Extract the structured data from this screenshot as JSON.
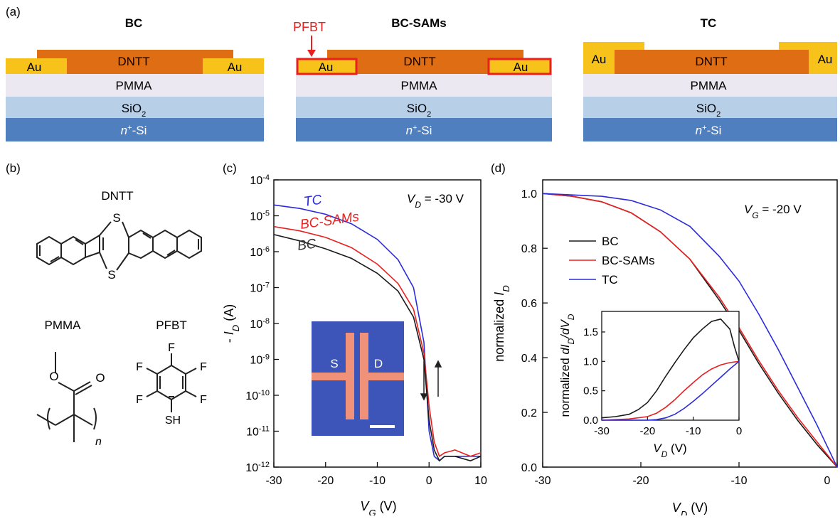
{
  "panels": {
    "a": {
      "label": "(a)",
      "devices": [
        {
          "title": "BC"
        },
        {
          "title": "BC-SAMs",
          "annotation": "PFBT"
        },
        {
          "title": "TC"
        }
      ],
      "layers": {
        "semiconductor": "DNTT",
        "electrode": "Au",
        "dielectric": "PMMA",
        "oxide_base": "SiO",
        "oxide_sub": "2",
        "substrate_italic": "n",
        "substrate_sup": "+",
        "substrate_rest": "-Si"
      }
    },
    "b": {
      "label": "(b)",
      "molecules": [
        "DNTT",
        "PMMA",
        "PFBT"
      ],
      "atoms": {
        "sulfur": "S",
        "oxygen": "O",
        "fluorine": "F",
        "thiol": "SH",
        "repeat": "n"
      }
    },
    "c": {
      "label": "(c)",
      "annotation_italic": "V",
      "annotation_sub": "D",
      "annotation_rest": " = -30 V",
      "curve_labels": [
        "TC",
        "BC-SAMs",
        "BC"
      ],
      "ylabel_prefix": "- ",
      "ylabel_italic": "I",
      "ylabel_sub": "D",
      "ylabel_rest": " (A)",
      "xlabel_italic": "V",
      "xlabel_sub": "G",
      "xlabel_rest": " (V)",
      "xticks": [
        "-30",
        "-20",
        "-10",
        "0",
        "10"
      ],
      "ytick_base": "10",
      "ytick_exponents": [
        "-4",
        "-5",
        "-6",
        "-7",
        "-8",
        "-9",
        "-10",
        "-11",
        "-12"
      ],
      "inset": {
        "source": "S",
        "drain": "D"
      }
    },
    "d": {
      "label": "(d)",
      "annotation_italic": "V",
      "annotation_sub": "G",
      "annotation_rest": " = -20 V",
      "legend": [
        "BC",
        "BC-SAMs",
        "TC"
      ],
      "ylabel_prefix": "normalized ",
      "ylabel_italic": "I",
      "ylabel_sub": "D",
      "xlabel_italic": "V",
      "xlabel_sub": "D",
      "xlabel_rest": " (V)",
      "xticks": [
        "-30",
        "-20",
        "-10",
        "0"
      ],
      "yticks": [
        "0.0",
        "0.2",
        "0.4",
        "0.6",
        "0.8",
        "1.0"
      ],
      "inset": {
        "ylabel_prefix": "normalized ",
        "ylabel_i": "dI",
        "ylabel_i_sub": "D",
        "ylabel_slash": "/dV",
        "ylabel_v_sub": "D",
        "xlabel_italic": "V",
        "xlabel_sub": "D",
        "xlabel_rest": " (V)",
        "xticks": [
          "-30",
          "-20",
          "-10",
          "0"
        ],
        "yticks": [
          "0.0",
          "0.5",
          "1.0",
          "1.5"
        ]
      }
    }
  },
  "colors": {
    "BC": "#1a1a1a",
    "BC-SAMs": "#e8201f",
    "TC": "#2b2bd9",
    "Au": "#f7c21a",
    "DNTT": "#df6d14",
    "PMMA": "#ece8f1",
    "SiO2": "#b8cfe8",
    "Si": "#4f7fbf",
    "PFBT": "#e8201f",
    "inset_bg": "#3d55b8",
    "inset_electrode": "#f0917a"
  },
  "chart_data": [
    {
      "type": "line",
      "panel": "c",
      "title": "",
      "xlabel": "V_G (V)",
      "ylabel": "- I_D (A)",
      "xlim": [
        -30,
        10
      ],
      "ylim": [
        1e-12,
        0.0001
      ],
      "yscale": "log",
      "grid": false,
      "series": [
        {
          "name": "TC",
          "color": "#2b2bd9",
          "x": [
            -30,
            -25,
            -20,
            -15,
            -10,
            -6,
            -3,
            -1,
            0,
            1,
            2,
            3,
            5,
            8,
            10
          ],
          "y": [
            2e-05,
            1.6e-05,
            1.1e-05,
            6e-06,
            2.2e-06,
            6e-07,
            1e-07,
            3e-09,
            1e-11,
            2e-12,
            1.5e-12,
            2e-12,
            2e-12,
            2e-12,
            2e-12
          ]
        },
        {
          "name": "BC-SAMs",
          "color": "#e8201f",
          "x": [
            -30,
            -25,
            -20,
            -15,
            -10,
            -6,
            -3,
            -1,
            0,
            1,
            2,
            3,
            5,
            8,
            10
          ],
          "y": [
            5e-06,
            3.8e-06,
            2.5e-06,
            1.3e-06,
            4.5e-07,
            1.3e-07,
            2.5e-08,
            1.5e-09,
            5e-11,
            5e-12,
            2e-12,
            2.5e-12,
            3e-12,
            2e-12,
            2.5e-12
          ]
        },
        {
          "name": "BC",
          "color": "#1a1a1a",
          "x": [
            -30,
            -25,
            -20,
            -15,
            -10,
            -6,
            -3,
            -1,
            0,
            1,
            2,
            3,
            5,
            8,
            10
          ],
          "y": [
            3e-06,
            2e-06,
            1.2e-06,
            6.5e-07,
            2.5e-07,
            8e-08,
            1.5e-08,
            1e-09,
            2e-11,
            3e-12,
            1.5e-12,
            2e-12,
            2e-12,
            1.5e-12,
            2e-12
          ]
        }
      ]
    },
    {
      "type": "line",
      "panel": "d",
      "title": "",
      "xlabel": "V_D (V)",
      "ylabel": "normalized I_D",
      "xlim": [
        -30,
        0
      ],
      "ylim": [
        0,
        1.05
      ],
      "grid": false,
      "legend_position": "upper-left",
      "series": [
        {
          "name": "BC",
          "color": "#1a1a1a",
          "x": [
            -30,
            -27,
            -24,
            -21,
            -18,
            -15,
            -12,
            -10,
            -8,
            -6,
            -4,
            -2,
            0
          ],
          "y": [
            1.0,
            0.99,
            0.97,
            0.93,
            0.86,
            0.76,
            0.61,
            0.5,
            0.38,
            0.27,
            0.17,
            0.08,
            0.0
          ]
        },
        {
          "name": "BC-SAMs",
          "color": "#e8201f",
          "x": [
            -30,
            -27,
            -24,
            -21,
            -18,
            -15,
            -12,
            -10,
            -8,
            -6,
            -4,
            -2,
            0
          ],
          "y": [
            1.0,
            0.99,
            0.97,
            0.93,
            0.86,
            0.76,
            0.62,
            0.51,
            0.39,
            0.28,
            0.18,
            0.09,
            0.0
          ]
        },
        {
          "name": "TC",
          "color": "#2b2bd9",
          "x": [
            -30,
            -27,
            -24,
            -21,
            -18,
            -15,
            -12,
            -10,
            -8,
            -6,
            -4,
            -2,
            0
          ],
          "y": [
            1.0,
            0.995,
            0.99,
            0.975,
            0.94,
            0.88,
            0.77,
            0.68,
            0.56,
            0.43,
            0.29,
            0.15,
            0.0
          ]
        }
      ]
    },
    {
      "type": "line",
      "panel": "d-inset",
      "title": "",
      "xlabel": "V_D (V)",
      "ylabel": "normalized dI_D/dV_D",
      "xlim": [
        -30,
        0
      ],
      "ylim": [
        0,
        1.85
      ],
      "grid": false,
      "series": [
        {
          "name": "BC",
          "color": "#1a1a1a",
          "x": [
            -30,
            -27,
            -24,
            -22,
            -20,
            -18,
            -16,
            -14,
            -12,
            -10,
            -8,
            -6,
            -4,
            -2,
            -1,
            0
          ],
          "y": [
            0.04,
            0.06,
            0.1,
            0.18,
            0.3,
            0.5,
            0.75,
            0.98,
            1.2,
            1.4,
            1.55,
            1.68,
            1.72,
            1.55,
            1.25,
            1.0
          ]
        },
        {
          "name": "BC-SAMs",
          "color": "#e8201f",
          "x": [
            -30,
            -24,
            -20,
            -18,
            -16,
            -14,
            -12,
            -10,
            -8,
            -6,
            -4,
            -2,
            0
          ],
          "y": [
            0.0,
            0.02,
            0.06,
            0.12,
            0.22,
            0.35,
            0.5,
            0.64,
            0.77,
            0.87,
            0.94,
            0.98,
            1.0
          ]
        },
        {
          "name": "TC",
          "color": "#2b2bd9",
          "x": [
            -30,
            -20,
            -18,
            -16,
            -14,
            -12,
            -10,
            -8,
            -6,
            -4,
            -2,
            0
          ],
          "y": [
            0.0,
            0.0,
            0.01,
            0.04,
            0.1,
            0.2,
            0.32,
            0.45,
            0.59,
            0.73,
            0.87,
            1.0
          ]
        }
      ]
    }
  ]
}
